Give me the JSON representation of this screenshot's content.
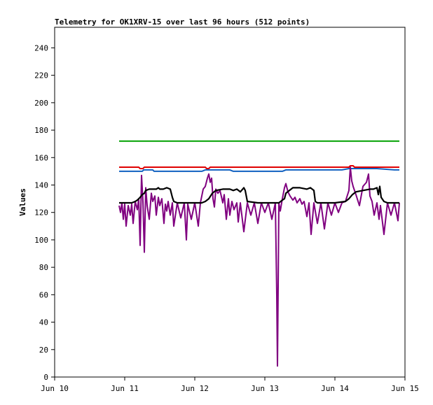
{
  "chart_data": {
    "type": "line",
    "title": "Telemetry for OK1XRV-15 over last 96 hours (512 points)",
    "xlabel": "",
    "ylabel": "Values",
    "xlim": [
      "Jun 10",
      "Jun 15"
    ],
    "ylim": [
      0,
      255
    ],
    "x_ticks": [
      "Jun 10",
      "Jun 11",
      "Jun 12",
      "Jun 13",
      "Jun 14",
      "Jun 15"
    ],
    "y_ticks": [
      0,
      20,
      40,
      60,
      80,
      100,
      120,
      140,
      160,
      180,
      200,
      220,
      240
    ],
    "grid": false,
    "legend": "none",
    "x_unit": "days",
    "x_origin_label": "Jun 10",
    "series": [
      {
        "color": "#00a000",
        "x": [
          10.92,
          14.92
        ],
        "y": [
          172,
          172
        ]
      },
      {
        "color": "#e00000",
        "x": [
          10.92,
          11.2,
          11.22,
          11.26,
          11.28,
          12.15,
          12.17,
          12.2,
          12.22,
          14.2,
          14.22,
          14.26,
          14.28,
          14.92
        ],
        "y": [
          153,
          153,
          152,
          152,
          153,
          153,
          152,
          152,
          153,
          153,
          154,
          154,
          153,
          153
        ]
      },
      {
        "color": "#1060c0",
        "x": [
          10.92,
          11.25,
          11.27,
          11.4,
          11.42,
          12.1,
          12.15,
          12.5,
          12.55,
          13.25,
          13.3,
          14.1,
          14.2,
          14.4,
          14.6,
          14.85,
          14.92
        ],
        "y": [
          150,
          150,
          151,
          151,
          150,
          150,
          151,
          151,
          150,
          150,
          151,
          151,
          152,
          152,
          152,
          151,
          151
        ]
      },
      {
        "color": "#800080",
        "x": [
          10.92,
          10.94,
          10.96,
          10.98,
          11.0,
          11.02,
          11.05,
          11.08,
          11.1,
          11.12,
          11.15,
          11.18,
          11.2,
          11.22,
          11.24,
          11.26,
          11.28,
          11.3,
          11.32,
          11.35,
          11.38,
          11.4,
          11.43,
          11.45,
          11.48,
          11.5,
          11.53,
          11.56,
          11.58,
          11.6,
          11.62,
          11.65,
          11.68,
          11.7,
          11.75,
          11.8,
          11.85,
          11.88,
          11.9,
          11.95,
          12.0,
          12.05,
          12.08,
          12.1,
          12.12,
          12.15,
          12.18,
          12.2,
          12.22,
          12.24,
          12.26,
          12.28,
          12.3,
          12.33,
          12.36,
          12.4,
          12.42,
          12.45,
          12.48,
          12.5,
          12.53,
          12.56,
          12.6,
          12.62,
          12.65,
          12.7,
          12.75,
          12.8,
          12.85,
          12.9,
          12.95,
          13.0,
          13.05,
          13.1,
          13.15,
          13.17,
          13.18,
          13.19,
          13.2,
          13.22,
          13.25,
          13.28,
          13.3,
          13.33,
          13.36,
          13.4,
          13.43,
          13.46,
          13.5,
          13.53,
          13.56,
          13.6,
          13.63,
          13.66,
          13.7,
          13.75,
          13.8,
          13.85,
          13.9,
          13.95,
          14.0,
          14.05,
          14.1,
          14.15,
          14.2,
          14.22,
          14.24,
          14.26,
          14.3,
          14.35,
          14.4,
          14.45,
          14.48,
          14.5,
          14.53,
          14.56,
          14.6,
          14.63,
          14.65,
          14.7,
          14.75,
          14.8,
          14.85,
          14.9,
          14.92
        ],
        "y": [
          125,
          120,
          127,
          115,
          126,
          110,
          125,
          118,
          126,
          112,
          128,
          122,
          130,
          96,
          147,
          128,
          91,
          138,
          125,
          115,
          134,
          128,
          132,
          118,
          131,
          125,
          130,
          112,
          126,
          121,
          128,
          118,
          127,
          110,
          127,
          116,
          127,
          100,
          126,
          115,
          127,
          110,
          127,
          132,
          137,
          139,
          145,
          148,
          142,
          145,
          130,
          124,
          137,
          134,
          136,
          127,
          133,
          115,
          130,
          118,
          128,
          122,
          127,
          113,
          127,
          106,
          127,
          118,
          127,
          112,
          127,
          120,
          127,
          115,
          127,
          60,
          8,
          66,
          127,
          121,
          130,
          138,
          141,
          135,
          132,
          129,
          131,
          127,
          130,
          126,
          128,
          117,
          127,
          104,
          127,
          112,
          127,
          108,
          127,
          118,
          127,
          120,
          127,
          128,
          136,
          153,
          143,
          139,
          133,
          125,
          139,
          142,
          148,
          132,
          128,
          118,
          127,
          115,
          125,
          104,
          127,
          118,
          127,
          114,
          127
        ]
      },
      {
        "color": "#000000",
        "x": [
          10.92,
          11.1,
          11.15,
          11.18,
          11.2,
          11.22,
          11.25,
          11.28,
          11.3,
          11.35,
          11.4,
          11.45,
          11.48,
          11.5,
          11.55,
          11.6,
          11.65,
          11.68,
          11.7,
          11.75,
          11.9,
          12.1,
          12.15,
          12.2,
          12.25,
          12.3,
          12.4,
          12.5,
          12.55,
          12.6,
          12.65,
          12.7,
          12.72,
          12.75,
          12.9,
          13.1,
          13.2,
          13.25,
          13.28,
          13.3,
          13.4,
          13.5,
          13.6,
          13.65,
          13.7,
          13.72,
          13.75,
          14.0,
          14.15,
          14.2,
          14.25,
          14.3,
          14.4,
          14.5,
          14.55,
          14.6,
          14.62,
          14.64,
          14.66,
          14.7,
          14.75,
          14.8,
          14.85,
          14.92
        ],
        "y": [
          127,
          127,
          128,
          129,
          130,
          131,
          133,
          134,
          136,
          137,
          137,
          137,
          138,
          137,
          137,
          138,
          137,
          131,
          128,
          127,
          127,
          127,
          128,
          130,
          134,
          136,
          137,
          137,
          136,
          137,
          135,
          138,
          136,
          128,
          127,
          127,
          127,
          129,
          130,
          134,
          138,
          138,
          137,
          138,
          136,
          128,
          127,
          127,
          128,
          130,
          133,
          135,
          136,
          137,
          137,
          138,
          133,
          139,
          131,
          128,
          127,
          127,
          127,
          127
        ]
      }
    ]
  }
}
